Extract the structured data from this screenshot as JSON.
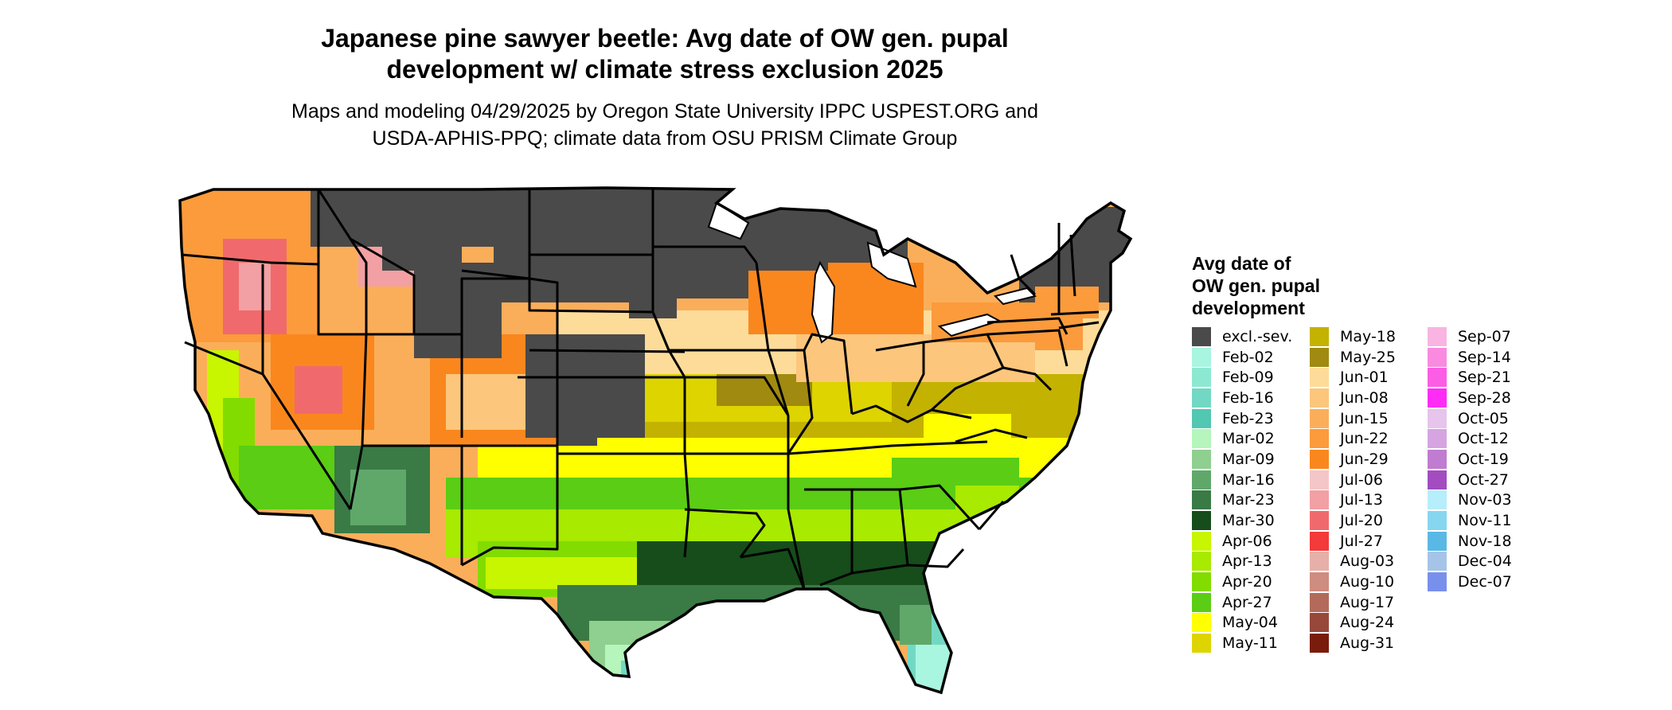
{
  "title": {
    "line1": "Japanese pine sawyer beetle: Avg date of OW gen. pupal",
    "line2": "development w/ climate stress exclusion 2025"
  },
  "subtitle": {
    "line1": "Maps and modeling 04/29/2025 by Oregon State University IPPC USPEST.ORG and",
    "line2": "USDA-APHIS-PPQ; climate data from OSU PRISM Climate Group"
  },
  "legend": {
    "title_lines": [
      "Avg date of",
      "OW gen. pupal",
      "development"
    ],
    "items": [
      {
        "label": "excl.-sev.",
        "color": "#4a4a4a"
      },
      {
        "label": "Feb-02",
        "color": "#a8f5e0"
      },
      {
        "label": "Feb-09",
        "color": "#8de8d2"
      },
      {
        "label": "Feb-16",
        "color": "#72d8c3"
      },
      {
        "label": "Feb-23",
        "color": "#52c7b2"
      },
      {
        "label": "Mar-02",
        "color": "#b6f5bc"
      },
      {
        "label": "Mar-09",
        "color": "#8fcf8f"
      },
      {
        "label": "Mar-16",
        "color": "#5fa86a"
      },
      {
        "label": "Mar-23",
        "color": "#3a7a45"
      },
      {
        "label": "Mar-30",
        "color": "#164d1a"
      },
      {
        "label": "Apr-06",
        "color": "#c8f500"
      },
      {
        "label": "Apr-13",
        "color": "#a8ea00"
      },
      {
        "label": "Apr-20",
        "color": "#82dc00"
      },
      {
        "label": "Apr-27",
        "color": "#5acd14"
      },
      {
        "label": "May-04",
        "color": "#ffff00"
      },
      {
        "label": "May-11",
        "color": "#ddd400"
      },
      {
        "label": "May-18",
        "color": "#c4b200"
      },
      {
        "label": "May-25",
        "color": "#a08a10"
      },
      {
        "label": "Jun-01",
        "color": "#fddc9a"
      },
      {
        "label": "Jun-08",
        "color": "#fcc67c"
      },
      {
        "label": "Jun-15",
        "color": "#fbae5a"
      },
      {
        "label": "Jun-22",
        "color": "#fb9b3c"
      },
      {
        "label": "Jun-29",
        "color": "#fa871e"
      },
      {
        "label": "Jul-06",
        "color": "#f5c6c8"
      },
      {
        "label": "Jul-13",
        "color": "#f2a0a3"
      },
      {
        "label": "Jul-20",
        "color": "#f06a6d"
      },
      {
        "label": "Jul-27",
        "color": "#f43a3a"
      },
      {
        "label": "Aug-03",
        "color": "#e6b0a8"
      },
      {
        "label": "Aug-10",
        "color": "#cf8c80"
      },
      {
        "label": "Aug-17",
        "color": "#b36a5a"
      },
      {
        "label": "Aug-24",
        "color": "#97483a"
      },
      {
        "label": "Aug-31",
        "color": "#7a1c0c"
      },
      {
        "label": "Sep-07",
        "color": "#f9b4e2"
      },
      {
        "label": "Sep-14",
        "color": "#f98ae0"
      },
      {
        "label": "Sep-21",
        "color": "#fb5ee4"
      },
      {
        "label": "Sep-28",
        "color": "#ff2cf5"
      },
      {
        "label": "Oct-05",
        "color": "#e6c4ec"
      },
      {
        "label": "Oct-12",
        "color": "#d6a4e0"
      },
      {
        "label": "Oct-19",
        "color": "#c07cd0"
      },
      {
        "label": "Oct-27",
        "color": "#a24cc0"
      },
      {
        "label": "Nov-03",
        "color": "#b6eefc"
      },
      {
        "label": "Nov-11",
        "color": "#86d6f0"
      },
      {
        "label": "Nov-18",
        "color": "#5ab8e6"
      },
      {
        "label": "Dec-04",
        "color": "#a6c4e8"
      },
      {
        "label": "Dec-07",
        "color": "#7890ec"
      }
    ]
  }
}
